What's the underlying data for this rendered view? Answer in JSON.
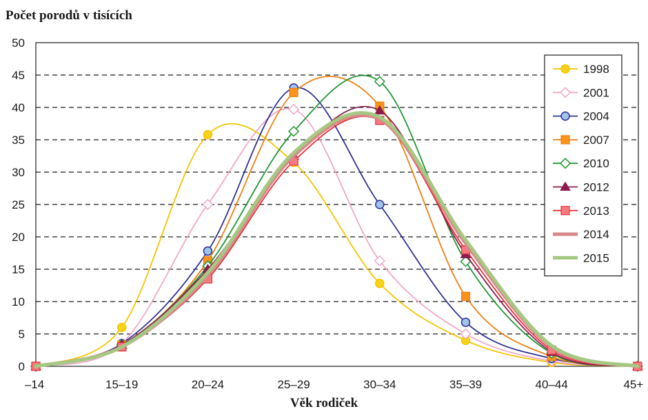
{
  "chart_data": {
    "type": "line",
    "title": "Počet porodů v tisících",
    "xlabel": "Věk rodiček",
    "ylabel": "",
    "categories": [
      "–14",
      "15–19",
      "20–24",
      "25–29",
      "30–34",
      "35–39",
      "40–44",
      "45+"
    ],
    "ylim": [
      0,
      50
    ],
    "yticks": [
      0,
      5,
      10,
      15,
      20,
      25,
      30,
      35,
      40,
      45,
      50
    ],
    "grid": "horizontal dashed",
    "legend_position": "top-right",
    "series": [
      {
        "name": "1998",
        "color": "#f5c400",
        "marker": "circle",
        "values": [
          0,
          6,
          35.8,
          31.5,
          12.8,
          4,
          0.6,
          0
        ]
      },
      {
        "name": "2001",
        "color": "#f0a6c8",
        "marker": "diamond",
        "values": [
          0,
          3.5,
          25,
          39.7,
          16.3,
          5,
          0.8,
          0
        ]
      },
      {
        "name": "2004",
        "color": "#2e3192",
        "marker": "circle",
        "values": [
          0,
          3.5,
          17.8,
          43,
          25,
          6.8,
          1.2,
          0
        ]
      },
      {
        "name": "2007",
        "color": "#f07f12",
        "marker": "square",
        "values": [
          0,
          3.3,
          16.3,
          42.3,
          40.2,
          10.8,
          1.5,
          0
        ]
      },
      {
        "name": "2010",
        "color": "#1e9632",
        "marker": "diamond",
        "values": [
          0,
          3.3,
          15.5,
          36.3,
          44,
          16.2,
          2,
          0
        ]
      },
      {
        "name": "2012",
        "color": "#8b1a4e",
        "marker": "triangle",
        "values": [
          0,
          3.3,
          15,
          32.5,
          39.5,
          17.3,
          2.2,
          0
        ]
      },
      {
        "name": "2013",
        "color": "#e8303a",
        "marker": "square",
        "values": [
          0,
          3,
          13.5,
          31.7,
          38,
          18,
          2.5,
          0
        ]
      },
      {
        "name": "2014",
        "color": "#d88a8a",
        "marker": "none",
        "values": [
          0,
          3,
          14,
          32.5,
          38.2,
          19,
          3,
          0
        ]
      },
      {
        "name": "2015",
        "color": "#a5c882",
        "marker": "none",
        "values": [
          0,
          3,
          14.5,
          33,
          38.5,
          19.5,
          3.2,
          0
        ]
      }
    ]
  }
}
